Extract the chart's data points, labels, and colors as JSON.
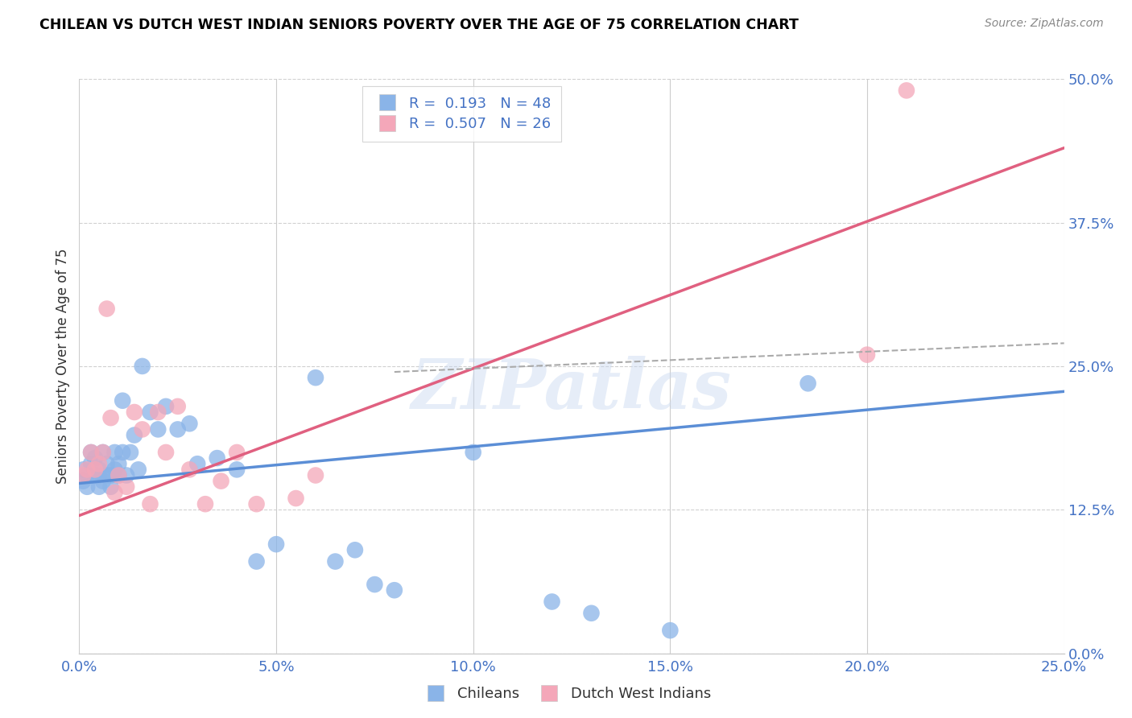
{
  "title": "CHILEAN VS DUTCH WEST INDIAN SENIORS POVERTY OVER THE AGE OF 75 CORRELATION CHART",
  "source": "Source: ZipAtlas.com",
  "ylabel_label": "Seniors Poverty Over the Age of 75",
  "xlim": [
    0.0,
    0.25
  ],
  "ylim": [
    0.0,
    0.5
  ],
  "xticks": [
    0.0,
    0.05,
    0.1,
    0.15,
    0.2,
    0.25
  ],
  "yticks": [
    0.0,
    0.125,
    0.25,
    0.375,
    0.5
  ],
  "chilean_color": "#8ab4e8",
  "dutch_color": "#f4a7b9",
  "chilean_line_color": "#5b8ed6",
  "dutch_line_color": "#e06080",
  "dash_color": "#aaaaaa",
  "chilean_r": 0.193,
  "chilean_n": 48,
  "dutch_r": 0.507,
  "dutch_n": 26,
  "legend_label_1": "Chileans",
  "legend_label_2": "Dutch West Indians",
  "watermark": "ZIPatlas",
  "chilean_x": [
    0.001,
    0.001,
    0.002,
    0.002,
    0.003,
    0.003,
    0.004,
    0.004,
    0.005,
    0.005,
    0.005,
    0.006,
    0.006,
    0.007,
    0.007,
    0.008,
    0.008,
    0.009,
    0.009,
    0.01,
    0.01,
    0.011,
    0.011,
    0.012,
    0.013,
    0.014,
    0.015,
    0.016,
    0.018,
    0.02,
    0.022,
    0.025,
    0.028,
    0.03,
    0.035,
    0.04,
    0.045,
    0.05,
    0.06,
    0.065,
    0.07,
    0.075,
    0.08,
    0.1,
    0.12,
    0.13,
    0.15,
    0.185
  ],
  "chilean_y": [
    0.16,
    0.15,
    0.155,
    0.145,
    0.165,
    0.175,
    0.155,
    0.17,
    0.155,
    0.16,
    0.145,
    0.175,
    0.15,
    0.155,
    0.165,
    0.155,
    0.145,
    0.16,
    0.175,
    0.155,
    0.165,
    0.175,
    0.22,
    0.155,
    0.175,
    0.19,
    0.16,
    0.25,
    0.21,
    0.195,
    0.215,
    0.195,
    0.2,
    0.165,
    0.17,
    0.16,
    0.08,
    0.095,
    0.24,
    0.08,
    0.09,
    0.06,
    0.055,
    0.175,
    0.045,
    0.035,
    0.02,
    0.235
  ],
  "dutch_x": [
    0.001,
    0.002,
    0.003,
    0.004,
    0.005,
    0.006,
    0.007,
    0.008,
    0.009,
    0.01,
    0.012,
    0.014,
    0.016,
    0.018,
    0.02,
    0.022,
    0.025,
    0.028,
    0.032,
    0.036,
    0.04,
    0.045,
    0.055,
    0.06,
    0.2,
    0.21
  ],
  "dutch_y": [
    0.155,
    0.16,
    0.175,
    0.16,
    0.165,
    0.175,
    0.3,
    0.205,
    0.14,
    0.155,
    0.145,
    0.21,
    0.195,
    0.13,
    0.21,
    0.175,
    0.215,
    0.16,
    0.13,
    0.15,
    0.175,
    0.13,
    0.135,
    0.155,
    0.26,
    0.49
  ],
  "chilean_trend_x": [
    0.0,
    0.25
  ],
  "chilean_trend_y": [
    0.148,
    0.228
  ],
  "dutch_trend_x": [
    0.0,
    0.25
  ],
  "dutch_trend_y": [
    0.12,
    0.44
  ],
  "dash_trend_x": [
    0.08,
    0.25
  ],
  "dash_trend_y": [
    0.245,
    0.27
  ]
}
